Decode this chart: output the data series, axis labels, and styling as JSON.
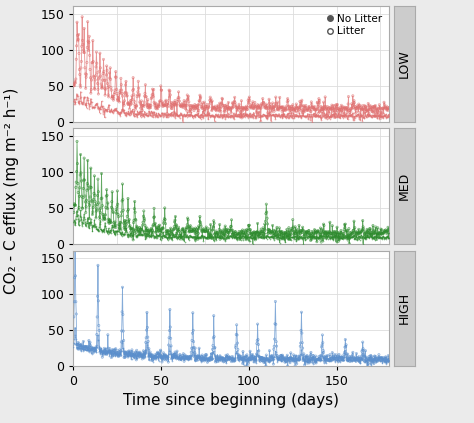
{
  "title": "",
  "xlabel": "Time since beginning (days)",
  "ylabel": "CO₂ - C efflux (mg m⁻² h⁻¹)",
  "panels": [
    "LOW",
    "MED",
    "HIGH"
  ],
  "panel_colors": [
    "#E07070",
    "#2E8B2E",
    "#5B8FCC"
  ],
  "xlim": [
    0,
    180
  ],
  "ylim": [
    0,
    160
  ],
  "yticks": [
    0,
    50,
    100,
    150
  ],
  "xticks": [
    0,
    50,
    100,
    150
  ],
  "legend_entries": [
    "No Litter",
    "Litter"
  ],
  "background_color": "#FFFFFF",
  "grid_color": "#DDDDDD",
  "label_fontsize": 11,
  "tick_fontsize": 9,
  "panel_label_fontsize": 9,
  "panel_strip_color": "#CCCCCC",
  "fig_bg": "#EBEBEB"
}
